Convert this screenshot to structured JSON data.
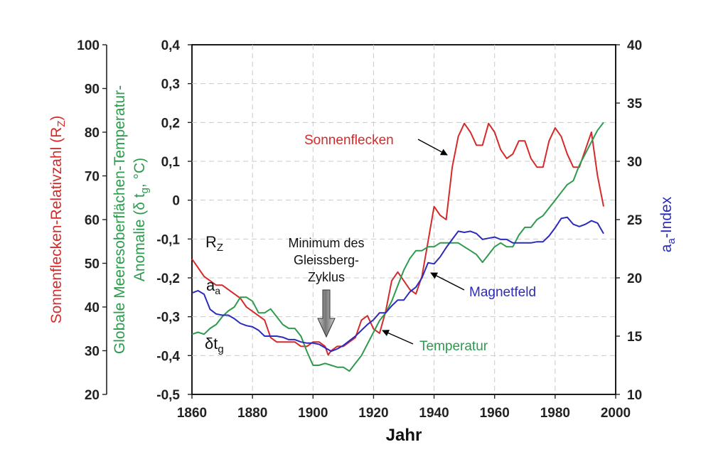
{
  "chart_data": {
    "type": "line",
    "x_axis": {
      "label": "Jahr",
      "range": [
        1860,
        2000
      ],
      "ticks": [
        1860,
        1880,
        1900,
        1920,
        1940,
        1960,
        1980,
        2000
      ],
      "tick_labels": [
        "1860",
        "1880",
        "1900",
        "1920",
        "1940",
        "1960",
        "1980",
        "2000"
      ]
    },
    "y_axes": {
      "sunspot": {
        "label": "Sonnenflecken-Relativzahl (R",
        "label_sub": "Z",
        "label_end": ")",
        "range": [
          20,
          100
        ],
        "ticks": [
          20,
          30,
          40,
          50,
          60,
          70,
          80,
          90,
          100
        ],
        "tick_labels": [
          "20",
          "30",
          "40",
          "50",
          "60",
          "70",
          "80",
          "90",
          "100"
        ],
        "color": "#d42a2a"
      },
      "temperature": {
        "label_line1": "Globale Meeresoberflächen-Temperatur-",
        "label_line2_pre": "Anomalie (δ t",
        "label_line2_sub": "g",
        "label_line2_post": ", °C)",
        "range": [
          -0.5,
          0.4
        ],
        "ticks": [
          -0.5,
          -0.4,
          -0.3,
          -0.2,
          -0.1,
          0,
          0.1,
          0.2,
          0.3,
          0.4
        ],
        "tick_labels": [
          "-0,5",
          "-0,4",
          "-0,3",
          "-0,2",
          "-0,1",
          "0",
          "0,1",
          "0,2",
          "0,3",
          "0,4"
        ],
        "color": "#2e9a4e"
      },
      "aa_index": {
        "label_pre": "a",
        "label_sub": "a",
        "label_post": "-Index",
        "range": [
          10,
          40
        ],
        "ticks": [
          10,
          15,
          20,
          25,
          30,
          35,
          40
        ],
        "tick_labels": [
          "10",
          "15",
          "20",
          "25",
          "30",
          "35",
          "40"
        ],
        "color": "#2b2bbd"
      }
    },
    "series": [
      {
        "name": "Sonnenflecken",
        "axis": "sunspot",
        "color": "#d42a2a",
        "x": [
          1860,
          1862,
          1864,
          1866,
          1868,
          1870,
          1872,
          1874,
          1876,
          1878,
          1880,
          1882,
          1884,
          1886,
          1888,
          1890,
          1892,
          1894,
          1896,
          1898,
          1900,
          1902,
          1904,
          1905,
          1906,
          1908,
          1910,
          1912,
          1914,
          1916,
          1918,
          1920,
          1922,
          1924,
          1926,
          1928,
          1930,
          1932,
          1934,
          1936,
          1938,
          1940,
          1942,
          1944,
          1946,
          1948,
          1950,
          1952,
          1954,
          1956,
          1958,
          1960,
          1962,
          1964,
          1966,
          1968,
          1970,
          1972,
          1974,
          1976,
          1978,
          1980,
          1982,
          1984,
          1986,
          1988,
          1990,
          1992,
          1994,
          1996
        ],
        "values": [
          51,
          49,
          47,
          46,
          45,
          45,
          44,
          43,
          42,
          40,
          39,
          38,
          37,
          33,
          32,
          32,
          32,
          32,
          31,
          31,
          32,
          32,
          31,
          29,
          30,
          31,
          31,
          32,
          33,
          37,
          38,
          35,
          34,
          39,
          46,
          48,
          46,
          44,
          43,
          47,
          55,
          63,
          61,
          60,
          72,
          79,
          82,
          80,
          77,
          77,
          82,
          80,
          76,
          74,
          75,
          78,
          78,
          74,
          72,
          72,
          78,
          81,
          79,
          75,
          72,
          72,
          76,
          80,
          70,
          63
        ]
      },
      {
        "name": "Temperatur",
        "axis": "temperature",
        "color": "#2e9a4e",
        "x": [
          1860,
          1862,
          1864,
          1866,
          1868,
          1870,
          1872,
          1874,
          1876,
          1878,
          1880,
          1882,
          1884,
          1886,
          1888,
          1890,
          1892,
          1894,
          1896,
          1898,
          1900,
          1902,
          1904,
          1906,
          1908,
          1910,
          1912,
          1914,
          1916,
          1918,
          1920,
          1922,
          1924,
          1926,
          1928,
          1930,
          1932,
          1934,
          1936,
          1938,
          1940,
          1942,
          1944,
          1946,
          1948,
          1950,
          1952,
          1954,
          1956,
          1958,
          1960,
          1962,
          1964,
          1966,
          1968,
          1970,
          1972,
          1974,
          1976,
          1978,
          1980,
          1982,
          1984,
          1986,
          1988,
          1990,
          1992,
          1994,
          1996
        ],
        "values": [
          -0.345,
          -0.34,
          -0.345,
          -0.33,
          -0.32,
          -0.3,
          -0.285,
          -0.275,
          -0.25,
          -0.25,
          -0.26,
          -0.29,
          -0.29,
          -0.28,
          -0.3,
          -0.32,
          -0.33,
          -0.33,
          -0.35,
          -0.39,
          -0.425,
          -0.425,
          -0.42,
          -0.425,
          -0.43,
          -0.43,
          -0.44,
          -0.42,
          -0.4,
          -0.37,
          -0.34,
          -0.31,
          -0.29,
          -0.26,
          -0.22,
          -0.18,
          -0.15,
          -0.13,
          -0.13,
          -0.12,
          -0.12,
          -0.11,
          -0.11,
          -0.11,
          -0.11,
          -0.12,
          -0.13,
          -0.14,
          -0.16,
          -0.14,
          -0.12,
          -0.11,
          -0.12,
          -0.12,
          -0.09,
          -0.07,
          -0.07,
          -0.05,
          -0.04,
          -0.02,
          0.0,
          0.02,
          0.04,
          0.05,
          0.09,
          0.12,
          0.15,
          0.18,
          0.2
        ]
      },
      {
        "name": "Magnetfeld",
        "axis": "aa_index",
        "color": "#2b2bbd",
        "x": [
          1860,
          1862,
          1864,
          1866,
          1868,
          1870,
          1872,
          1874,
          1876,
          1878,
          1880,
          1882,
          1884,
          1886,
          1888,
          1890,
          1892,
          1894,
          1896,
          1898,
          1900,
          1902,
          1904,
          1906,
          1908,
          1910,
          1912,
          1914,
          1916,
          1918,
          1920,
          1922,
          1924,
          1926,
          1928,
          1930,
          1932,
          1934,
          1936,
          1938,
          1940,
          1942,
          1944,
          1946,
          1948,
          1950,
          1952,
          1954,
          1956,
          1958,
          1960,
          1962,
          1964,
          1966,
          1968,
          1970,
          1972,
          1974,
          1976,
          1978,
          1980,
          1982,
          1984,
          1986,
          1988,
          1990,
          1992,
          1994,
          1996
        ],
        "values": [
          18.7,
          18.9,
          18.6,
          17.3,
          16.9,
          16.8,
          16.8,
          16.5,
          16.1,
          15.9,
          15.8,
          15.5,
          15.0,
          15.0,
          15.0,
          14.9,
          14.7,
          14.7,
          14.5,
          14.4,
          14.4,
          14.3,
          14.0,
          13.7,
          13.9,
          14.2,
          14.6,
          15.0,
          15.5,
          16.0,
          16.4,
          17.0,
          17.0,
          17.6,
          18.1,
          18.1,
          18.8,
          19.2,
          20.0,
          21.3,
          21.2,
          21.8,
          22.6,
          23.3,
          24.0,
          23.9,
          24.0,
          23.8,
          23.3,
          23.4,
          23.5,
          23.3,
          23.3,
          23.0,
          23.0,
          23.0,
          23.0,
          23.1,
          23.1,
          23.6,
          24.3,
          25.1,
          25.2,
          24.6,
          24.4,
          24.6,
          24.9,
          24.7,
          23.8
        ]
      }
    ],
    "grid": true,
    "annotations": {
      "sonnenflecken": "Sonnenflecken",
      "magnetfeld": "Magnetfeld",
      "temperatur": "Temperatur",
      "minimum_line1": "Minimum des",
      "minimum_line2": "Gleissberg-",
      "minimum_line3": "Zyklus",
      "rz_base": "R",
      "rz_sub": "Z",
      "aa_base": "a",
      "aa_sub": "a",
      "dtg_base": "δt",
      "dtg_sub": "g"
    }
  }
}
